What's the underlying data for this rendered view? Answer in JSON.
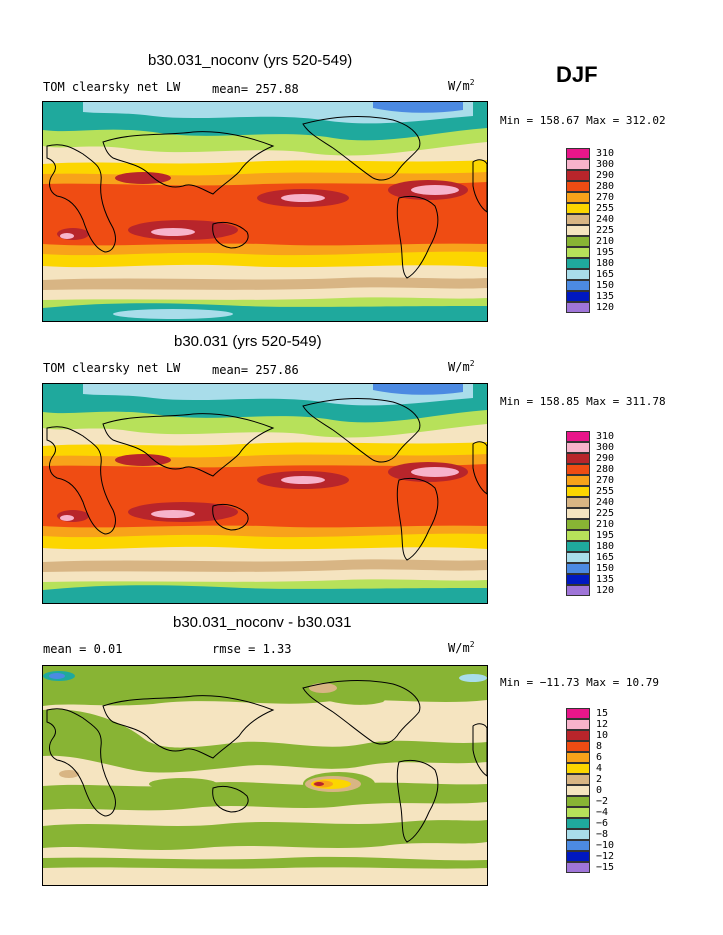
{
  "season": "DJF",
  "units_base": "W/m",
  "units_exp": "2",
  "palette": [
    "#e8168a",
    "#f7b3cb",
    "#b8252b",
    "#ef4c13",
    "#f8a31a",
    "#fcd600",
    "#d8b584",
    "#f5e4c0",
    "#88b434",
    "#b7e15a",
    "#1fa99d",
    "#a9ddea",
    "#4c8ae2",
    "#0018c0",
    "#9f75d8"
  ],
  "panels": [
    {
      "title": "b30.031_noconv (yrs 520-549)",
      "left": "TOM clearsky net LW",
      "mid": "mean= 257.88",
      "minmax": "Min = 158.67 Max = 312.02",
      "levels": [
        "310",
        "300",
        "290",
        "280",
        "270",
        "255",
        "240",
        "225",
        "210",
        "195",
        "180",
        "165",
        "150",
        "135",
        "120"
      ]
    },
    {
      "title": "b30.031 (yrs 520-549)",
      "left": "TOM clearsky net LW",
      "mid": "mean= 257.86",
      "minmax": "Min = 158.85 Max = 311.78",
      "levels": [
        "310",
        "300",
        "290",
        "280",
        "270",
        "255",
        "240",
        "225",
        "210",
        "195",
        "180",
        "165",
        "150",
        "135",
        "120"
      ]
    },
    {
      "title": "b30.031_noconv - b30.031",
      "left": "mean =   0.01",
      "mid": "rmse =   1.33",
      "minmax": "Min = −11.73 Max =  10.79",
      "levels": [
        "15",
        "12",
        "10",
        "8",
        "6",
        "4",
        "2",
        "0",
        "−2",
        "−4",
        "−6",
        "−8",
        "−10",
        "−12",
        "−15"
      ]
    }
  ]
}
